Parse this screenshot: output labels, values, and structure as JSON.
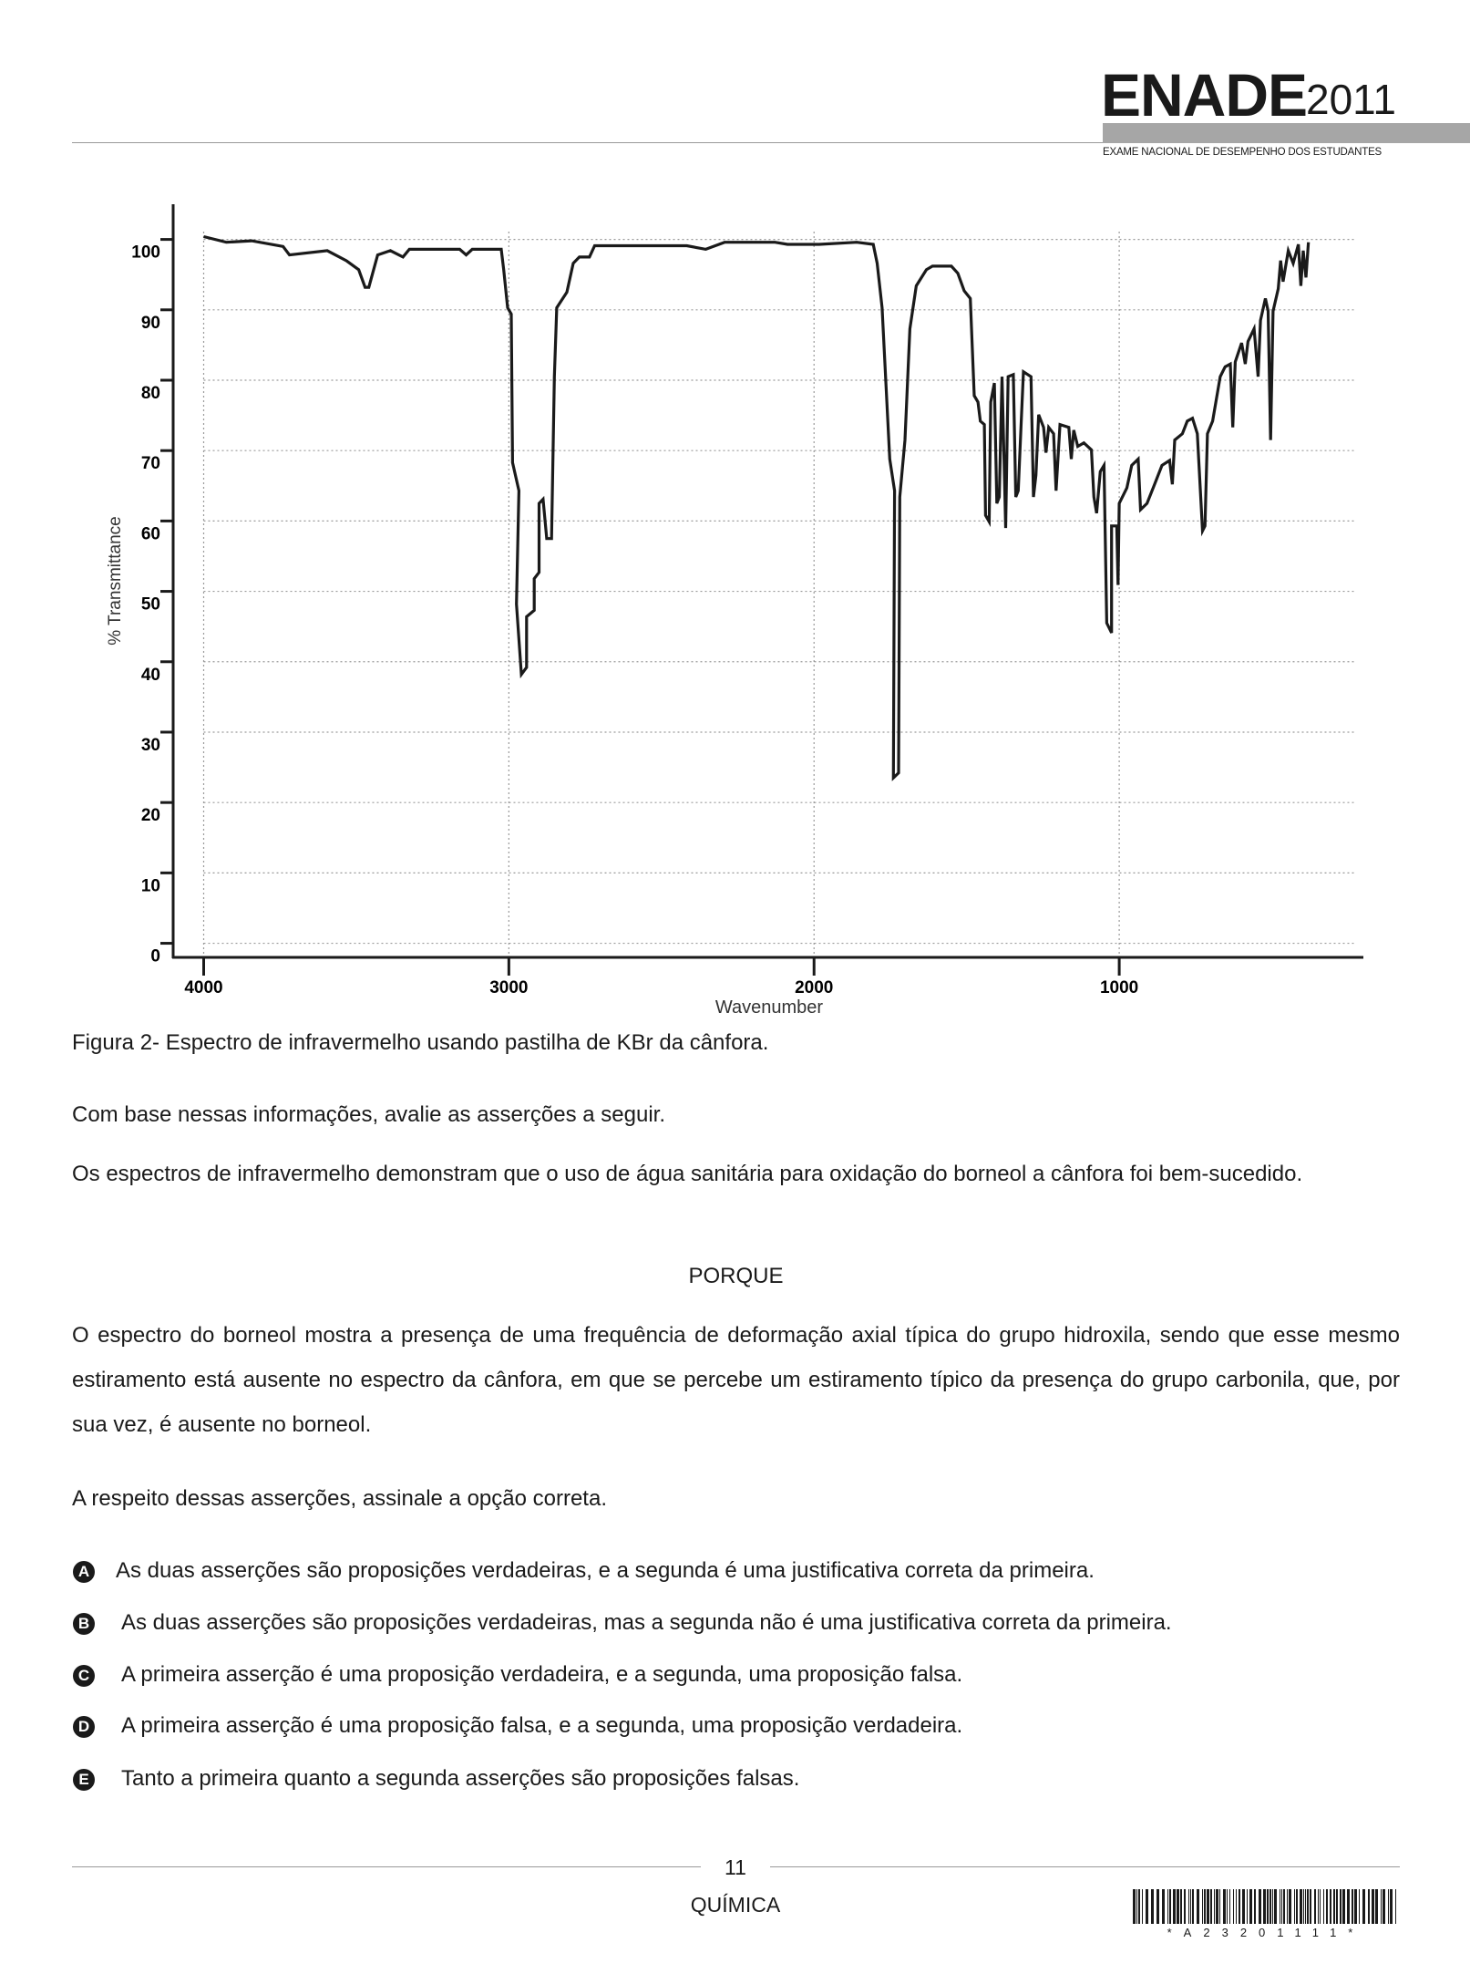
{
  "header": {
    "brand": "ENADE",
    "year": "2011",
    "subtitle": "EXAME NACIONAL DE DESEMPENHO DOS ESTUDANTES"
  },
  "chart_data": {
    "type": "line",
    "ylabel": "% Transmittance",
    "xlabel": "Wavenumber",
    "color": "#1a1a1a",
    "grid": true,
    "xlim": [
      4100,
      200
    ],
    "ylim": [
      -2,
      105
    ],
    "xticks": [
      4000,
      3000,
      2000,
      1000
    ],
    "yticks": [
      0,
      10,
      20,
      30,
      40,
      50,
      60,
      70,
      80,
      90,
      100
    ],
    "x": [
      4000,
      3926,
      3843,
      3740,
      3719,
      3595,
      3533,
      3492,
      3471,
      3459,
      3430,
      3388,
      3347,
      3326,
      3161,
      3140,
      3120,
      3025,
      3017,
      3004,
      2992,
      2988,
      2967,
      2975,
      2959,
      2942,
      2942,
      2917,
      2917,
      2901,
      2901,
      2888,
      2876,
      2860,
      2851,
      2843,
      2810,
      2789,
      2769,
      2736,
      2719,
      2521,
      2417,
      2355,
      2293,
      2128,
      2087,
      1983,
      1860,
      1806,
      1793,
      1777,
      1752,
      1736,
      1740,
      1723,
      1719,
      1702,
      1686,
      1665,
      1632,
      1612,
      1550,
      1529,
      1508,
      1488,
      1475,
      1463,
      1455,
      1442,
      1438,
      1426,
      1421,
      1409,
      1401,
      1393,
      1384,
      1376,
      1372,
      1364,
      1347,
      1339,
      1331,
      1322,
      1314,
      1289,
      1281,
      1273,
      1264,
      1248,
      1240,
      1231,
      1215,
      1207,
      1194,
      1165,
      1157,
      1149,
      1136,
      1116,
      1091,
      1083,
      1074,
      1062,
      1050,
      1041,
      1025,
      1025,
      1008,
      1004,
      1000,
      975,
      959,
      938,
      930,
      909,
      884,
      860,
      835,
      826,
      818,
      793,
      777,
      760,
      744,
      727,
      719,
      711,
      694,
      669,
      653,
      636,
      628,
      620,
      599,
      587,
      578,
      558,
      545,
      537,
      521,
      512,
      504,
      496,
      479,
      471,
      463,
      446,
      430,
      413,
      405,
      397,
      388,
      380
    ],
    "values": [
      100.4,
      99.6,
      99.8,
      99.0,
      97.8,
      98.4,
      97.0,
      95.7,
      93.2,
      93.2,
      97.8,
      98.4,
      97.5,
      98.6,
      98.6,
      97.8,
      98.6,
      98.6,
      95.7,
      90.3,
      89.4,
      68.3,
      64.3,
      48.2,
      38.2,
      39.2,
      46.4,
      47.3,
      51.8,
      52.7,
      62.5,
      63.1,
      57.5,
      57.5,
      80.5,
      90.3,
      92.5,
      96.6,
      97.5,
      97.5,
      99.1,
      99.1,
      99.1,
      98.6,
      99.6,
      99.6,
      99.3,
      99.3,
      99.6,
      99.3,
      96.6,
      90.3,
      68.8,
      64.3,
      23.5,
      24.2,
      63.4,
      71.5,
      87.3,
      93.4,
      95.7,
      96.2,
      96.2,
      95.2,
      92.7,
      91.6,
      77.8,
      76.9,
      74.2,
      73.7,
      60.8,
      59.9,
      76.9,
      79.6,
      62.5,
      63.4,
      80.5,
      66.1,
      59.0,
      80.5,
      80.8,
      63.4,
      64.3,
      73.3,
      81.2,
      80.5,
      63.4,
      66.5,
      75.1,
      73.3,
      69.7,
      73.3,
      72.4,
      64.3,
      73.7,
      73.3,
      68.8,
      72.9,
      70.6,
      71.1,
      70.1,
      63.4,
      61.1,
      67.0,
      67.9,
      45.5,
      44.1,
      59.3,
      59.3,
      50.9,
      62.5,
      64.7,
      67.9,
      68.8,
      61.6,
      62.5,
      65.2,
      67.9,
      68.6,
      65.2,
      71.5,
      72.4,
      74.2,
      74.6,
      72.4,
      58.6,
      59.3,
      72.4,
      74.2,
      80.5,
      81.9,
      82.3,
      73.3,
      82.6,
      85.3,
      82.3,
      85.5,
      87.3,
      80.5,
      88.5,
      91.6,
      89.8,
      71.5,
      89.8,
      93.0,
      97.0,
      94.0,
      98.4,
      96.6,
      99.3,
      93.4,
      98.4,
      94.6,
      99.6
    ]
  },
  "caption": "Figura 2- Espectro de infravermelho usando pastilha de KBr da cânfora.",
  "paragraphs": [
    "Com base nessas informações, avalie as asserções a seguir.",
    "Os espectros de infravermelho demonstram que o uso de água sanitária para oxidação do borneol a cânfora foi bem-sucedido.",
    "PORQUE",
    "O espectro do borneol mostra a presença de uma frequência de deformação axial típica do grupo hidroxila, sendo que esse mesmo estiramento está ausente no espectro da cânfora, em que se percebe um estiramento típico da presença do grupo carbonila, que, por sua vez, é ausente no borneol.",
    "A respeito dessas asserções, assinale a opção correta."
  ],
  "options": [
    {
      "letter": "A",
      "text": "As duas asserções são proposições verdadeiras, e a segunda é uma justificativa correta da primeira."
    },
    {
      "letter": "B",
      "text": "As duas asserções são proposições verdadeiras, mas a segunda não é uma justificativa correta da primeira."
    },
    {
      "letter": "C",
      "text": "A primeira asserção é uma proposição verdadeira, e a segunda, uma proposição falsa."
    },
    {
      "letter": "D",
      "text": "A primeira asserção é uma proposição falsa, e a segunda, uma proposição verdadeira."
    },
    {
      "letter": "E",
      "text": "Tanto a primeira quanto a segunda asserções são proposições falsas."
    }
  ],
  "footer": {
    "page": "11",
    "subject": "QUÍMICA",
    "barcode_text": "*A23201111*"
  }
}
